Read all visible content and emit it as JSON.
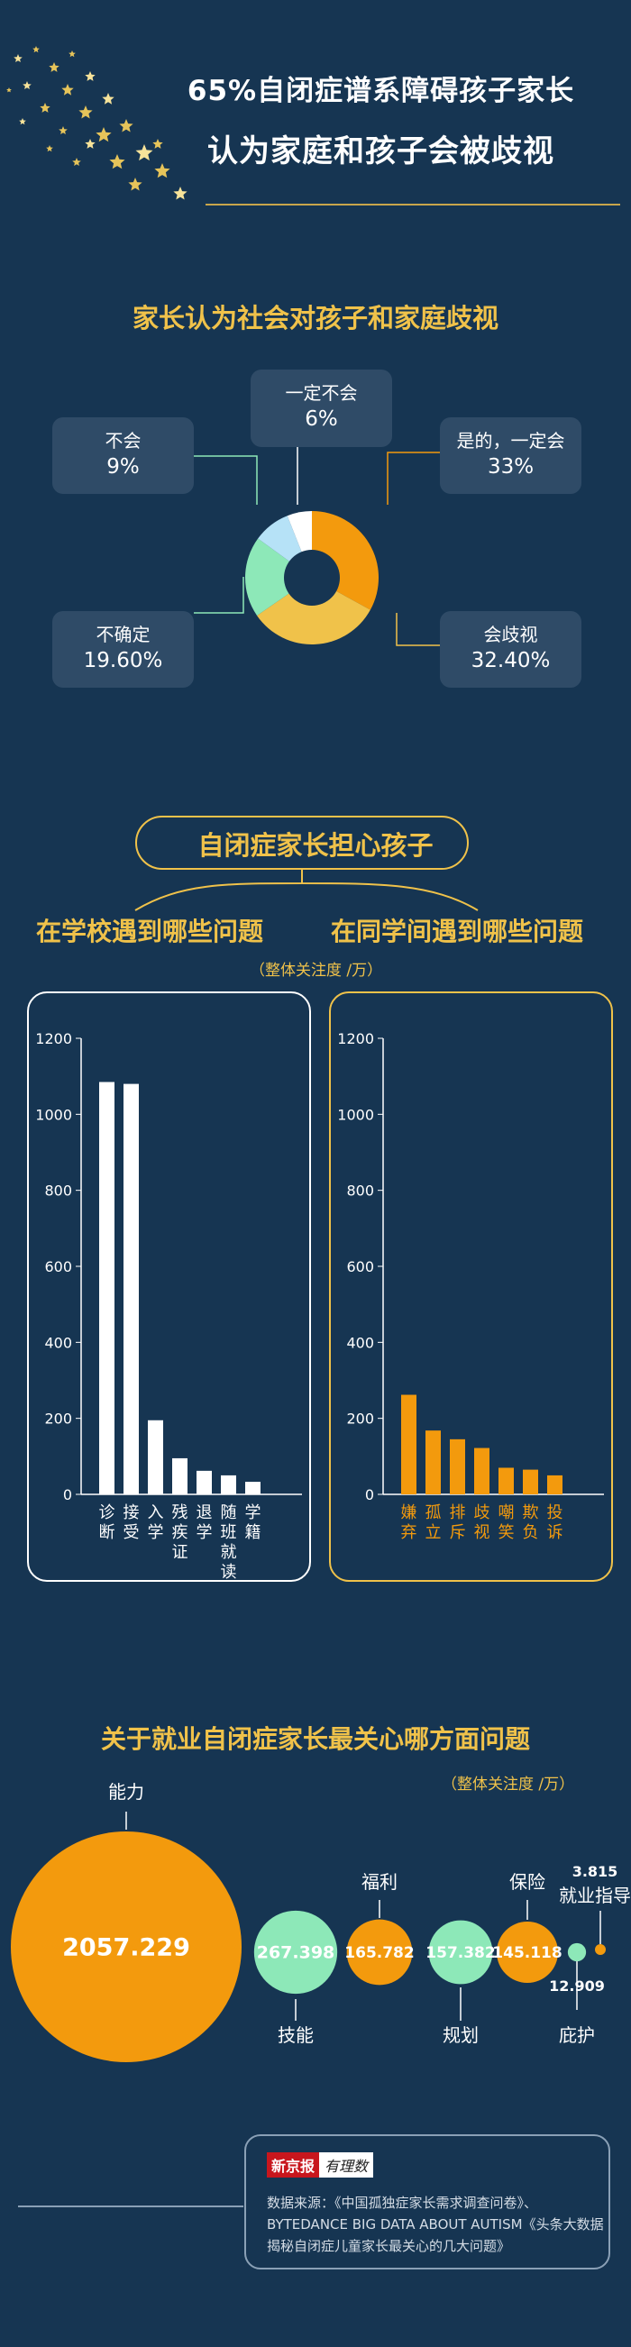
{
  "header": {
    "title_line1": "65%自闭症谱系障碍孩子家长",
    "title_line2": "认为家庭和孩子会被歧视"
  },
  "section1": {
    "title": "家长认为社会对孩子和家庭歧视"
  },
  "section2": {
    "title": "自闭症家长担心孩子",
    "left_heading": "在学校遇到哪些问题",
    "right_heading": "在同学间遇到哪些问题",
    "unit": "（整体关注度 /万）"
  },
  "section3": {
    "title": "关于就业自闭症家长最关心哪方面问题",
    "unit": "（整体关注度 /万）"
  },
  "source": {
    "brand": "新京报",
    "brand_sub": "有理数",
    "text": "数据来源：《中国孤独症家长需求调查问卷》、BYTEDANCE BIG DATA ABOUT AUTISM《头条大数据揭秘自闭症儿童家长最关心的几大问题》"
  },
  "colors": {
    "background": "#163552",
    "orange": "#f39a0d",
    "gold": "#f0c24a",
    "mint": "#8de8b8",
    "light_blue": "#b6e2f7",
    "white": "#ffffff"
  },
  "chart_data": [
    {
      "type": "pie",
      "title": "家长认为社会对孩子和家庭歧视",
      "slices": [
        {
          "label": "是的，一定会",
          "value": 33,
          "display": "33%",
          "color": "#f39a0d"
        },
        {
          "label": "会歧视",
          "value": 32.4,
          "display": "32.40%",
          "color": "#f0c24a"
        },
        {
          "label": "不确定",
          "value": 19.6,
          "display": "19.60%",
          "color": "#8de8b8"
        },
        {
          "label": "不会",
          "value": 9,
          "display": "9%",
          "color": "#b6e2f7"
        },
        {
          "label": "一定不会",
          "value": 6,
          "display": "6%",
          "color": "#ffffff"
        }
      ]
    },
    {
      "type": "bar",
      "title": "在学校遇到哪些问题",
      "categories": [
        "诊断",
        "接受",
        "入学",
        "残疾证",
        "退学",
        "随班就读",
        "学籍"
      ],
      "values": [
        1085,
        1080,
        195,
        95,
        62,
        50,
        33
      ],
      "ylim": [
        0,
        1200
      ],
      "yticks": [
        0,
        200,
        400,
        600,
        800,
        1000,
        1200
      ],
      "color": "#ffffff"
    },
    {
      "type": "bar",
      "title": "在同学间遇到哪些问题",
      "categories": [
        "嫌弃",
        "孤立",
        "排斥",
        "歧视",
        "嘲笑",
        "欺负",
        "投诉"
      ],
      "values": [
        262,
        168,
        145,
        122,
        70,
        65,
        50
      ],
      "ylim": [
        0,
        1200
      ],
      "yticks": [
        0,
        200,
        400,
        600,
        800,
        1000,
        1200
      ],
      "color": "#f39a0d"
    },
    {
      "type": "bubble",
      "title": "关于就业自闭症家长最关心哪方面问题",
      "items": [
        {
          "label": "能力",
          "value": 2057.229,
          "display": "2057.229",
          "color": "#f39a0d"
        },
        {
          "label": "技能",
          "value": 267.398,
          "display": "267.398",
          "color": "#8de8b8"
        },
        {
          "label": "福利",
          "value": 165.782,
          "display": "165.782",
          "color": "#f39a0d"
        },
        {
          "label": "规划",
          "value": 157.382,
          "display": "157.382",
          "color": "#8de8b8"
        },
        {
          "label": "保险",
          "value": 145.118,
          "display": "145.118",
          "color": "#f39a0d"
        },
        {
          "label": "庇护",
          "value": 12.909,
          "display": "12.909",
          "color": "#8de8b8"
        },
        {
          "label": "就业指导",
          "value": 3.815,
          "display": "3.815",
          "color": "#f39a0d"
        }
      ]
    }
  ]
}
